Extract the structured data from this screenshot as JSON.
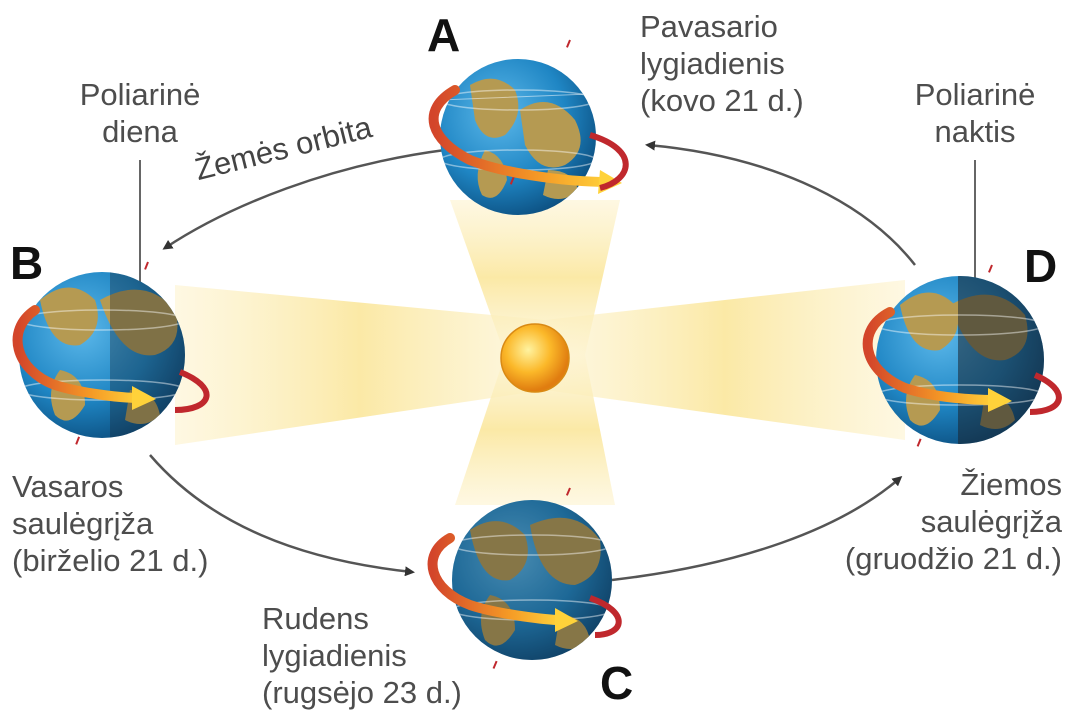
{
  "points": {
    "a": "A",
    "b": "B",
    "c": "C",
    "d": "D"
  },
  "orbit_label": "Žemės orbita",
  "labels": {
    "polar_day": [
      "Poliarinė",
      "diena"
    ],
    "polar_night": [
      "Poliarinė",
      "naktis"
    ],
    "spring_equinox": [
      "Pavasario",
      "lygiadienis",
      "(kovo 21 d.)"
    ],
    "summer_solstice": [
      "Vasaros",
      "saulėgrįža",
      "(birželio 21 d.)"
    ],
    "autumn_equinox": [
      "Rudens",
      "lygiadienis",
      "(rugsėjo 23 d.)"
    ],
    "winter_solstice": [
      "Žiemos",
      "saulėgrįža",
      "(gruodžio 21 d.)"
    ]
  },
  "colors": {
    "sun": "#f7a21b",
    "light_beam": "#fbeec0",
    "ocean": "#1f86c4",
    "land": "#b59a52",
    "night": "#1a2430",
    "rotation_arrow": "#c0282d",
    "orbit": "#444444"
  },
  "icons": [
    "sun-icon",
    "earth-globe-icon",
    "rotation-arrow-icon",
    "orbit-arrow-icon"
  ]
}
